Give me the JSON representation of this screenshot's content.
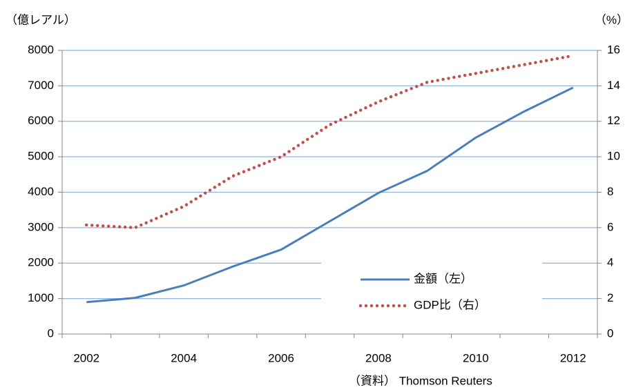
{
  "chart_data": {
    "type": "line",
    "y_label": "（億レアル）",
    "y2_label": "（%）",
    "source": "（資料） Thomson Reuters",
    "categories": [
      "2002",
      null,
      "2004",
      null,
      "2006",
      null,
      "2008",
      null,
      "2010",
      null,
      "2012"
    ],
    "series": [
      {
        "name": "金額（左）",
        "color": "#4a7ebb",
        "style": "solid",
        "axis": "y",
        "values": [
          900,
          1020,
          1370,
          1900,
          2380,
          3180,
          3980,
          4600,
          5540,
          6280,
          6950
        ]
      },
      {
        "name": "GDP比（右）",
        "color": "#c0504d",
        "style": "dotted",
        "axis": "y2",
        "values": [
          6.15,
          6.0,
          7.2,
          8.9,
          10.0,
          11.8,
          13.1,
          14.2,
          14.7,
          15.2,
          15.7
        ]
      }
    ],
    "ylim": [
      0,
      8000
    ],
    "yticks": [
      0,
      1000,
      2000,
      3000,
      4000,
      5000,
      6000,
      7000,
      8000
    ],
    "y2lim": [
      0,
      16
    ],
    "y2ticks": [
      0,
      2,
      4,
      6,
      8,
      10,
      12,
      14,
      16
    ],
    "grid": true,
    "legend_position": "lower right"
  }
}
